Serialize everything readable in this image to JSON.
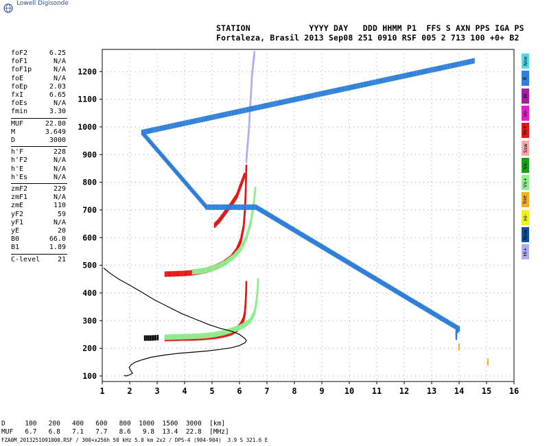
{
  "logo": {
    "text": "Lowell Digisonde",
    "icon": "globe-icon"
  },
  "header": {
    "row1": "STATION            YYYY DAY   DDD HHMM P1  FFS S AXN PPS IGA PS",
    "row2": "Fortaleza, Brasil 2013 Sep08 251 0910 RSF 005 2 713 100 +0+ B2"
  },
  "params": [
    {
      "k": "foF2",
      "v": "6.25"
    },
    {
      "k": "foF1",
      "v": "N/A"
    },
    {
      "k": "foF1p",
      "v": "N/A"
    },
    {
      "k": "foE",
      "v": "N/A"
    },
    {
      "k": "foEp",
      "v": "2.03"
    },
    {
      "k": "fxI",
      "v": "6.65"
    },
    {
      "k": "foEs",
      "v": "N/A"
    },
    {
      "k": "fmin",
      "v": "3.30"
    },
    {
      "k": "MUF",
      "v": "22.80"
    },
    {
      "k": "M",
      "v": "3.649"
    },
    {
      "k": "D",
      "v": "3000"
    },
    {
      "k": "h'F",
      "v": "228"
    },
    {
      "k": "h'F2",
      "v": "N/A"
    },
    {
      "k": "h'E",
      "v": "N/A"
    },
    {
      "k": "h'Es",
      "v": "N/A"
    },
    {
      "k": "zmF2",
      "v": "229"
    },
    {
      "k": "zmF1",
      "v": "N/A"
    },
    {
      "k": "zmE",
      "v": "110"
    },
    {
      "k": "yF2",
      "v": "59"
    },
    {
      "k": "yF1",
      "v": "N/A"
    },
    {
      "k": "yE",
      "v": "20"
    },
    {
      "k": "B0",
      "v": "66.0"
    },
    {
      "k": "B1",
      "v": "1.89"
    },
    {
      "k": "C-level",
      "v": "21"
    }
  ],
  "modes": [
    {
      "label": "Nne",
      "color": "#5ad6e8"
    },
    {
      "label": "E",
      "color": "#2e7fd8"
    },
    {
      "label": "W",
      "color": "#a020a0"
    },
    {
      "label": "Vo-",
      "color": "#e020c8"
    },
    {
      "label": "Vo+",
      "color": "#e01818"
    },
    {
      "label": "Ssw",
      "color": "#f4a8a8"
    },
    {
      "label": "Vx-",
      "color": "#18a018"
    },
    {
      "label": "Vx+",
      "color": "#8fee8f"
    },
    {
      "label": "Sse",
      "color": "#f0b020"
    },
    {
      "label": "Hi-",
      "color": "#f0f020"
    },
    {
      "label": "Nnw",
      "color": "#1050a0"
    },
    {
      "label": "Hi+",
      "color": "#b0b0f0"
    }
  ],
  "bottom": {
    "row1": "D     100   200   400   600   800  1000  1500  3000  [km]",
    "row2": "MUF   6.7   6.8   7.1   7.7   8.6   9.8  13.4  22.8  [MHz]",
    "row3": "FZA0M_2013251091000.RSF / 300+x256h 50 kHz 5.0 km 2x2 / DPS-4 (904-904)  3.9 S 321.6 E"
  },
  "chart_data": {
    "type": "scatter",
    "xlim": [
      1,
      16
    ],
    "ylim": [
      80,
      1280
    ],
    "x_ticks": [
      1,
      2,
      3,
      4,
      5,
      6,
      7,
      8,
      9,
      10,
      11,
      12,
      13,
      14,
      15,
      16
    ],
    "y_ticks": [
      100,
      200,
      300,
      400,
      500,
      600,
      700,
      800,
      900,
      1000,
      1100,
      1200
    ],
    "grid": true,
    "series": [
      {
        "color": "#e01818",
        "points": [
          [
            3.3,
            235
          ],
          [
            3.6,
            236
          ],
          [
            3.9,
            237
          ],
          [
            4.2,
            237
          ],
          [
            4.5,
            238
          ],
          [
            4.8,
            240
          ],
          [
            5.1,
            243
          ],
          [
            5.4,
            248
          ],
          [
            5.7,
            256
          ],
          [
            5.9,
            268
          ],
          [
            6.05,
            285
          ],
          [
            6.15,
            305
          ],
          [
            6.2,
            330
          ],
          [
            6.22,
            360
          ],
          [
            6.24,
            400
          ],
          [
            6.25,
            440
          ]
        ]
      },
      {
        "color": "#8fee8f",
        "points": [
          [
            3.3,
            240
          ],
          [
            3.6,
            241
          ],
          [
            3.9,
            242
          ],
          [
            4.2,
            243
          ],
          [
            4.5,
            244
          ],
          [
            4.8,
            246
          ],
          [
            5.1,
            250
          ],
          [
            5.4,
            256
          ],
          [
            5.7,
            265
          ],
          [
            6.0,
            275
          ],
          [
            6.2,
            285
          ],
          [
            6.4,
            300
          ],
          [
            6.55,
            330
          ],
          [
            6.62,
            370
          ],
          [
            6.66,
            410
          ],
          [
            6.68,
            450
          ]
        ]
      },
      {
        "color": "#000000",
        "points": [
          [
            2.55,
            237
          ],
          [
            2.75,
            237
          ],
          [
            2.95,
            238
          ],
          [
            3.1,
            239
          ]
        ]
      },
      {
        "color": "#e01818",
        "points": [
          [
            3.3,
            468
          ],
          [
            3.6,
            469
          ],
          [
            3.9,
            470
          ],
          [
            4.2,
            472
          ],
          [
            4.5,
            476
          ],
          [
            4.8,
            482
          ],
          [
            5.1,
            492
          ],
          [
            5.4,
            506
          ],
          [
            5.7,
            528
          ],
          [
            5.9,
            555
          ],
          [
            6.05,
            590
          ],
          [
            6.15,
            640
          ],
          [
            6.2,
            700
          ],
          [
            6.23,
            780
          ],
          [
            6.25,
            860
          ]
        ]
      },
      {
        "color": "#8fee8f",
        "points": [
          [
            4.3,
            476
          ],
          [
            4.6,
            479
          ],
          [
            4.9,
            485
          ],
          [
            5.2,
            495
          ],
          [
            5.5,
            510
          ],
          [
            5.8,
            532
          ],
          [
            6.05,
            560
          ],
          [
            6.25,
            600
          ],
          [
            6.4,
            650
          ],
          [
            6.5,
            710
          ],
          [
            6.58,
            780
          ]
        ]
      },
      {
        "color": "#b0b0f0",
        "points": [
          [
            6.25,
            880
          ],
          [
            6.3,
            940
          ],
          [
            6.35,
            1000
          ],
          [
            6.38,
            1060
          ],
          [
            6.42,
            1120
          ],
          [
            6.45,
            1180
          ],
          [
            6.5,
            1230
          ],
          [
            6.55,
            1270
          ]
        ]
      },
      {
        "color": "#e01818",
        "points": [
          [
            5.1,
            645
          ],
          [
            5.25,
            660
          ],
          [
            5.4,
            680
          ],
          [
            5.55,
            700
          ],
          [
            5.7,
            720
          ],
          [
            5.9,
            750
          ],
          [
            6.05,
            790
          ],
          [
            6.2,
            830
          ]
        ]
      },
      {
        "color": "#f0b020",
        "points": [
          [
            14.0,
            205
          ],
          [
            15.05,
            150
          ]
        ]
      },
      {
        "color": "#2e7fd8",
        "points": [
          [
            13.9,
            240
          ],
          [
            13.9,
            260
          ],
          [
            14.0,
            270
          ],
          [
            6.6,
            710
          ],
          [
            4.8,
            710
          ],
          [
            2.45,
            980
          ],
          [
            14.6,
            1240
          ]
        ]
      }
    ],
    "profile": {
      "color": "#000000",
      "points": [
        [
          1.05,
          490
        ],
        [
          1.3,
          470
        ],
        [
          1.6,
          450
        ],
        [
          2.0,
          428
        ],
        [
          2.4,
          405
        ],
        [
          2.9,
          375
        ],
        [
          3.4,
          350
        ],
        [
          3.9,
          325
        ],
        [
          4.4,
          305
        ],
        [
          4.9,
          285
        ],
        [
          5.3,
          272
        ],
        [
          5.7,
          262
        ],
        [
          6.0,
          250
        ],
        [
          6.2,
          235
        ],
        [
          6.25,
          228
        ],
        [
          6.2,
          220
        ],
        [
          6.0,
          210
        ],
        [
          5.7,
          202
        ],
        [
          5.3,
          196
        ],
        [
          4.8,
          190
        ],
        [
          4.3,
          186
        ],
        [
          3.8,
          182
        ],
        [
          3.3,
          176
        ],
        [
          2.8,
          168
        ],
        [
          2.5,
          160
        ],
        [
          2.2,
          150
        ],
        [
          2.05,
          140
        ],
        [
          1.98,
          130
        ],
        [
          2.05,
          118
        ],
        [
          2.1,
          110
        ],
        [
          1.98,
          103
        ],
        [
          1.85,
          100
        ],
        [
          1.8,
          103
        ]
      ]
    }
  }
}
